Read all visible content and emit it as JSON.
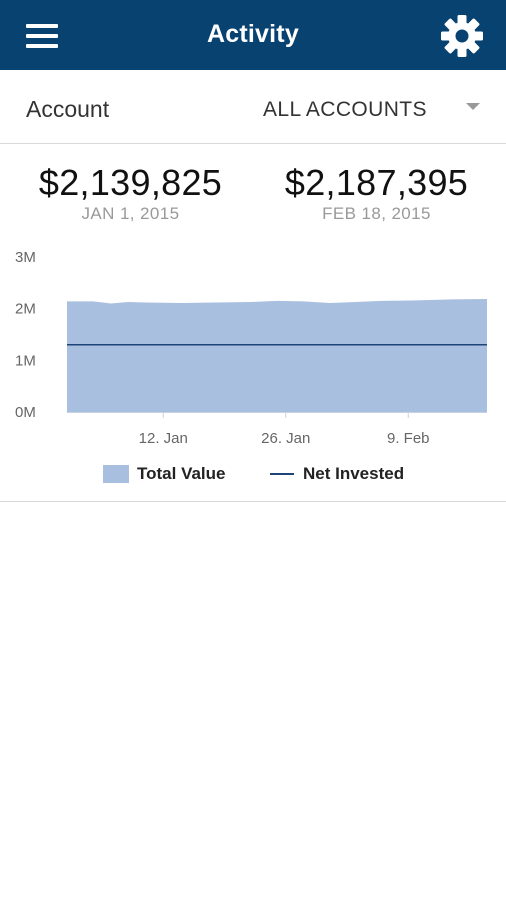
{
  "header": {
    "title": "Activity",
    "menu_icon": "hamburger-menu-icon",
    "settings_icon": "gear-icon",
    "background_color": "#074270"
  },
  "account_selector": {
    "label": "Account",
    "selected": "ALL ACCOUNTS",
    "arrow_icon": "dropdown-triangle-icon"
  },
  "summary": {
    "start_value": "$2,139,825",
    "start_date": "JAN 1, 2015",
    "end_value": "$2,187,395",
    "end_date": "FEB 18, 2015"
  },
  "chart_data": {
    "type": "area",
    "title": "",
    "xlabel": "",
    "ylabel": "",
    "x_start": "2015-01-01",
    "x_end": "2015-02-18",
    "ylim": [
      0,
      3000000
    ],
    "y_ticks": [
      "0M",
      "1M",
      "2M",
      "3M"
    ],
    "x_ticks": [
      "12. Jan",
      "26. Jan",
      "9. Feb"
    ],
    "grid": false,
    "legend": "bottom",
    "series": [
      {
        "name": "Total Value",
        "type": "area",
        "color": "#a8bfe0",
        "x": [
          "2015-01-01",
          "2015-01-04",
          "2015-01-06",
          "2015-01-08",
          "2015-01-10",
          "2015-01-14",
          "2015-01-18",
          "2015-01-22",
          "2015-01-25",
          "2015-01-28",
          "2015-01-31",
          "2015-02-03",
          "2015-02-06",
          "2015-02-10",
          "2015-02-14",
          "2015-02-18"
        ],
        "values": [
          2139825,
          2140000,
          2100000,
          2130000,
          2120000,
          2110000,
          2120000,
          2130000,
          2150000,
          2140000,
          2110000,
          2130000,
          2150000,
          2160000,
          2180000,
          2187395
        ]
      },
      {
        "name": "Net Invested",
        "type": "line",
        "color": "#1d4478",
        "x": [
          "2015-01-01",
          "2015-02-18"
        ],
        "values": [
          1300000,
          1300000
        ]
      }
    ]
  }
}
